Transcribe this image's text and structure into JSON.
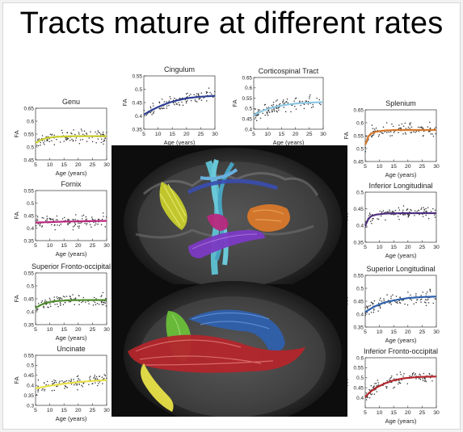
{
  "page": {
    "title": "Tracts mature at different rates"
  },
  "chart_data": [
    {
      "type": "scatter",
      "title": "Genu",
      "xlabel": "Age (years)",
      "ylabel": "FA",
      "xlim": [
        5,
        30
      ],
      "ylim": [
        0.45,
        0.65
      ],
      "xticks": [
        5,
        10,
        15,
        20,
        25,
        30
      ],
      "yticks": [
        0.45,
        0.5,
        0.55,
        0.6,
        0.65
      ],
      "yticklabels": [
        "0.45",
        "0.5",
        "0.55",
        "0.6",
        "0.65"
      ],
      "curve_color": "#c8cd2c",
      "fit": [
        [
          5,
          0.515
        ],
        [
          7,
          0.528
        ],
        [
          9,
          0.535
        ],
        [
          12,
          0.539
        ],
        [
          16,
          0.541
        ],
        [
          20,
          0.542
        ],
        [
          25,
          0.542
        ],
        [
          30,
          0.542
        ]
      ]
    },
    {
      "type": "scatter",
      "title": "Cingulum",
      "xlabel": "Age (years)",
      "ylabel": "FA",
      "xlim": [
        5,
        30
      ],
      "ylim": [
        0.35,
        0.55
      ],
      "xticks": [
        5,
        10,
        15,
        20,
        25,
        30
      ],
      "yticks": [
        0.35,
        0.4,
        0.45,
        0.5,
        0.55
      ],
      "yticklabels": [
        "0.35",
        "0.4",
        "0.45",
        "0.5",
        "0.55"
      ],
      "curve_color": "#2e3f95",
      "fit": [
        [
          5,
          0.405
        ],
        [
          8,
          0.423
        ],
        [
          11,
          0.438
        ],
        [
          14,
          0.45
        ],
        [
          17,
          0.459
        ],
        [
          20,
          0.466
        ],
        [
          24,
          0.471
        ],
        [
          28,
          0.474
        ],
        [
          30,
          0.475
        ]
      ]
    },
    {
      "type": "scatter",
      "title": "Corticospinal Tract",
      "xlabel": "Age (years)",
      "ylabel": "FA",
      "xlim": [
        5,
        30
      ],
      "ylim": [
        0.4,
        0.65
      ],
      "xticks": [
        5,
        10,
        15,
        20,
        25,
        30
      ],
      "yticks": [
        0.4,
        0.45,
        0.5,
        0.55,
        0.6,
        0.65
      ],
      "yticklabels": [
        "0.4",
        "0.45",
        "0.5",
        "0.55",
        "0.6",
        "0.65"
      ],
      "curve_color": "#8ec8e3",
      "fit": [
        [
          5,
          0.468
        ],
        [
          8,
          0.488
        ],
        [
          11,
          0.502
        ],
        [
          14,
          0.512
        ],
        [
          17,
          0.519
        ],
        [
          20,
          0.524
        ],
        [
          24,
          0.528
        ],
        [
          28,
          0.53
        ],
        [
          30,
          0.531
        ]
      ]
    },
    {
      "type": "scatter",
      "title": "Splenium",
      "xlabel": "Age (years)",
      "ylabel": "FA",
      "xlim": [
        5,
        30
      ],
      "ylim": [
        0.45,
        0.65
      ],
      "xticks": [
        5,
        10,
        15,
        20,
        25,
        30
      ],
      "yticks": [
        0.45,
        0.5,
        0.55,
        0.6,
        0.65
      ],
      "yticklabels": [
        "0.45",
        "0.5",
        "0.55",
        "0.6",
        "0.65"
      ],
      "curve_color": "#d9792b",
      "fit": [
        [
          5,
          0.515
        ],
        [
          6,
          0.545
        ],
        [
          7,
          0.558
        ],
        [
          9,
          0.566
        ],
        [
          12,
          0.57
        ],
        [
          16,
          0.572
        ],
        [
          22,
          0.572
        ],
        [
          30,
          0.572
        ]
      ]
    },
    {
      "type": "scatter",
      "title": "Fornix",
      "xlabel": "Age (years)",
      "ylabel": "FA",
      "xlim": [
        5,
        30
      ],
      "ylim": [
        0.35,
        0.55
      ],
      "xticks": [
        5,
        10,
        15,
        20,
        25,
        30
      ],
      "yticks": [
        0.35,
        0.4,
        0.45,
        0.5,
        0.55
      ],
      "yticklabels": [
        "0.35",
        "0.4",
        "0.45",
        "0.5",
        "0.55"
      ],
      "curve_color": "#b8287e",
      "fit": [
        [
          5,
          0.422
        ],
        [
          10,
          0.424
        ],
        [
          15,
          0.426
        ],
        [
          20,
          0.427
        ],
        [
          25,
          0.428
        ],
        [
          30,
          0.429
        ]
      ]
    },
    {
      "type": "scatter",
      "title": "Inferior Longitudinal",
      "xlabel": "Age (years)",
      "ylabel": "FA",
      "xlim": [
        5,
        30
      ],
      "ylim": [
        0.35,
        0.5
      ],
      "xticks": [
        5,
        10,
        15,
        20,
        25,
        30
      ],
      "yticks": [
        0.35,
        0.4,
        0.45,
        0.5
      ],
      "yticklabels": [
        "0.35",
        "0.4",
        "0.45",
        "0.5"
      ],
      "curve_color": "#503080",
      "fit": [
        [
          5,
          0.4
        ],
        [
          6,
          0.418
        ],
        [
          7,
          0.428
        ],
        [
          9,
          0.433
        ],
        [
          12,
          0.436
        ],
        [
          18,
          0.437
        ],
        [
          30,
          0.437
        ]
      ]
    },
    {
      "type": "scatter",
      "title": "Superior Fronto-occipital",
      "xlabel": "Age (years)",
      "ylabel": "FA",
      "xlim": [
        5,
        30
      ],
      "ylim": [
        0.35,
        0.55
      ],
      "xticks": [
        5,
        10,
        15,
        20,
        25,
        30
      ],
      "yticks": [
        0.35,
        0.4,
        0.45,
        0.5,
        0.55
      ],
      "yticklabels": [
        "0.35",
        "0.4",
        "0.45",
        "0.5",
        "0.55"
      ],
      "curve_color": "#4e8c2a",
      "fit": [
        [
          5,
          0.415
        ],
        [
          7,
          0.427
        ],
        [
          9,
          0.435
        ],
        [
          12,
          0.441
        ],
        [
          16,
          0.444
        ],
        [
          22,
          0.445
        ],
        [
          30,
          0.445
        ]
      ]
    },
    {
      "type": "scatter",
      "title": "Superior Longitudinal",
      "xlabel": "Age (years)",
      "ylabel": "FA",
      "xlim": [
        5,
        30
      ],
      "ylim": [
        0.35,
        0.55
      ],
      "xticks": [
        5,
        10,
        15,
        20,
        25,
        30
      ],
      "yticks": [
        0.35,
        0.4,
        0.45,
        0.5,
        0.55
      ],
      "yticklabels": [
        "0.35",
        "0.4",
        "0.45",
        "0.5",
        "0.55"
      ],
      "curve_color": "#2f61ad",
      "fit": [
        [
          5,
          0.408
        ],
        [
          8,
          0.428
        ],
        [
          11,
          0.442
        ],
        [
          14,
          0.451
        ],
        [
          17,
          0.457
        ],
        [
          20,
          0.462
        ],
        [
          25,
          0.466
        ],
        [
          30,
          0.468
        ]
      ]
    },
    {
      "type": "scatter",
      "title": "Uncinate",
      "xlabel": "Age (years)",
      "ylabel": "FA",
      "xlim": [
        5,
        30
      ],
      "ylim": [
        0.3,
        0.55
      ],
      "xticks": [
        5,
        10,
        15,
        20,
        25,
        30
      ],
      "yticks": [
        0.3,
        0.35,
        0.4,
        0.45,
        0.5,
        0.55
      ],
      "yticklabels": [
        "0.3",
        "0.35",
        "0.4",
        "0.45",
        "0.5",
        "0.55"
      ],
      "curve_color": "#e8e048",
      "fit": [
        [
          5,
          0.385
        ],
        [
          10,
          0.398
        ],
        [
          15,
          0.408
        ],
        [
          20,
          0.416
        ],
        [
          25,
          0.422
        ],
        [
          30,
          0.426
        ]
      ]
    },
    {
      "type": "scatter",
      "title": "Inferior Fronto-occipital",
      "xlabel": "Age (years)",
      "ylabel": "FA",
      "xlim": [
        5,
        30
      ],
      "ylim": [
        0.35,
        0.6
      ],
      "xticks": [
        5,
        10,
        15,
        20,
        25,
        30
      ],
      "yticks": [
        0.4,
        0.45,
        0.5,
        0.55,
        0.6
      ],
      "yticklabels": [
        "0.4",
        "0.45",
        "0.5",
        "0.55",
        "0.6"
      ],
      "curve_color": "#b3262c",
      "fit": [
        [
          5,
          0.405
        ],
        [
          7,
          0.432
        ],
        [
          9,
          0.452
        ],
        [
          12,
          0.472
        ],
        [
          15,
          0.487
        ],
        [
          18,
          0.496
        ],
        [
          22,
          0.502
        ],
        [
          26,
          0.505
        ],
        [
          30,
          0.506
        ]
      ]
    }
  ],
  "brain": {
    "background": "#0d0d0d"
  }
}
